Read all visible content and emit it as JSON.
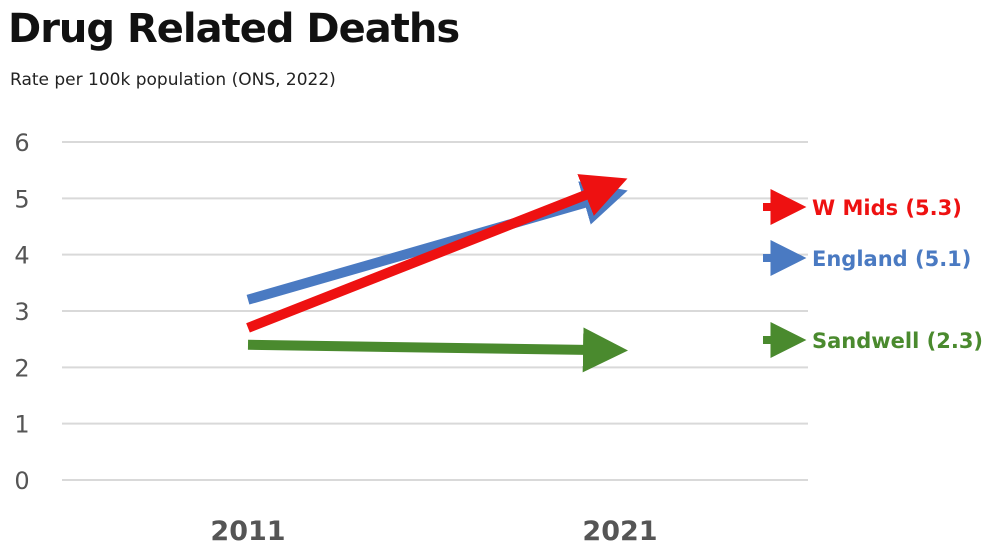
{
  "chart_data": {
    "type": "line",
    "title": "Drug Related Deaths",
    "subtitle": "Rate per 100k population (ONS, 2022)",
    "xlabel": "",
    "ylabel": "",
    "categories": [
      "2011",
      "2021"
    ],
    "ylim": [
      0,
      6
    ],
    "yticks": [
      0,
      1,
      2,
      3,
      4,
      5,
      6
    ],
    "grid": true,
    "legend_position": "right",
    "series": [
      {
        "key": "england",
        "name": "England",
        "label": "England (5.1)",
        "values": [
          3.2,
          5.1
        ],
        "color": "#4a7ac2"
      },
      {
        "key": "wmids",
        "name": "W Mids",
        "label": "W Mids (5.3)",
        "values": [
          2.7,
          5.3
        ],
        "color": "#ee1111"
      },
      {
        "key": "sandwell",
        "name": "Sandwell",
        "label": "Sandwell  (2.3)",
        "values": [
          2.4,
          2.3
        ],
        "color": "#4a8a2e"
      }
    ]
  }
}
